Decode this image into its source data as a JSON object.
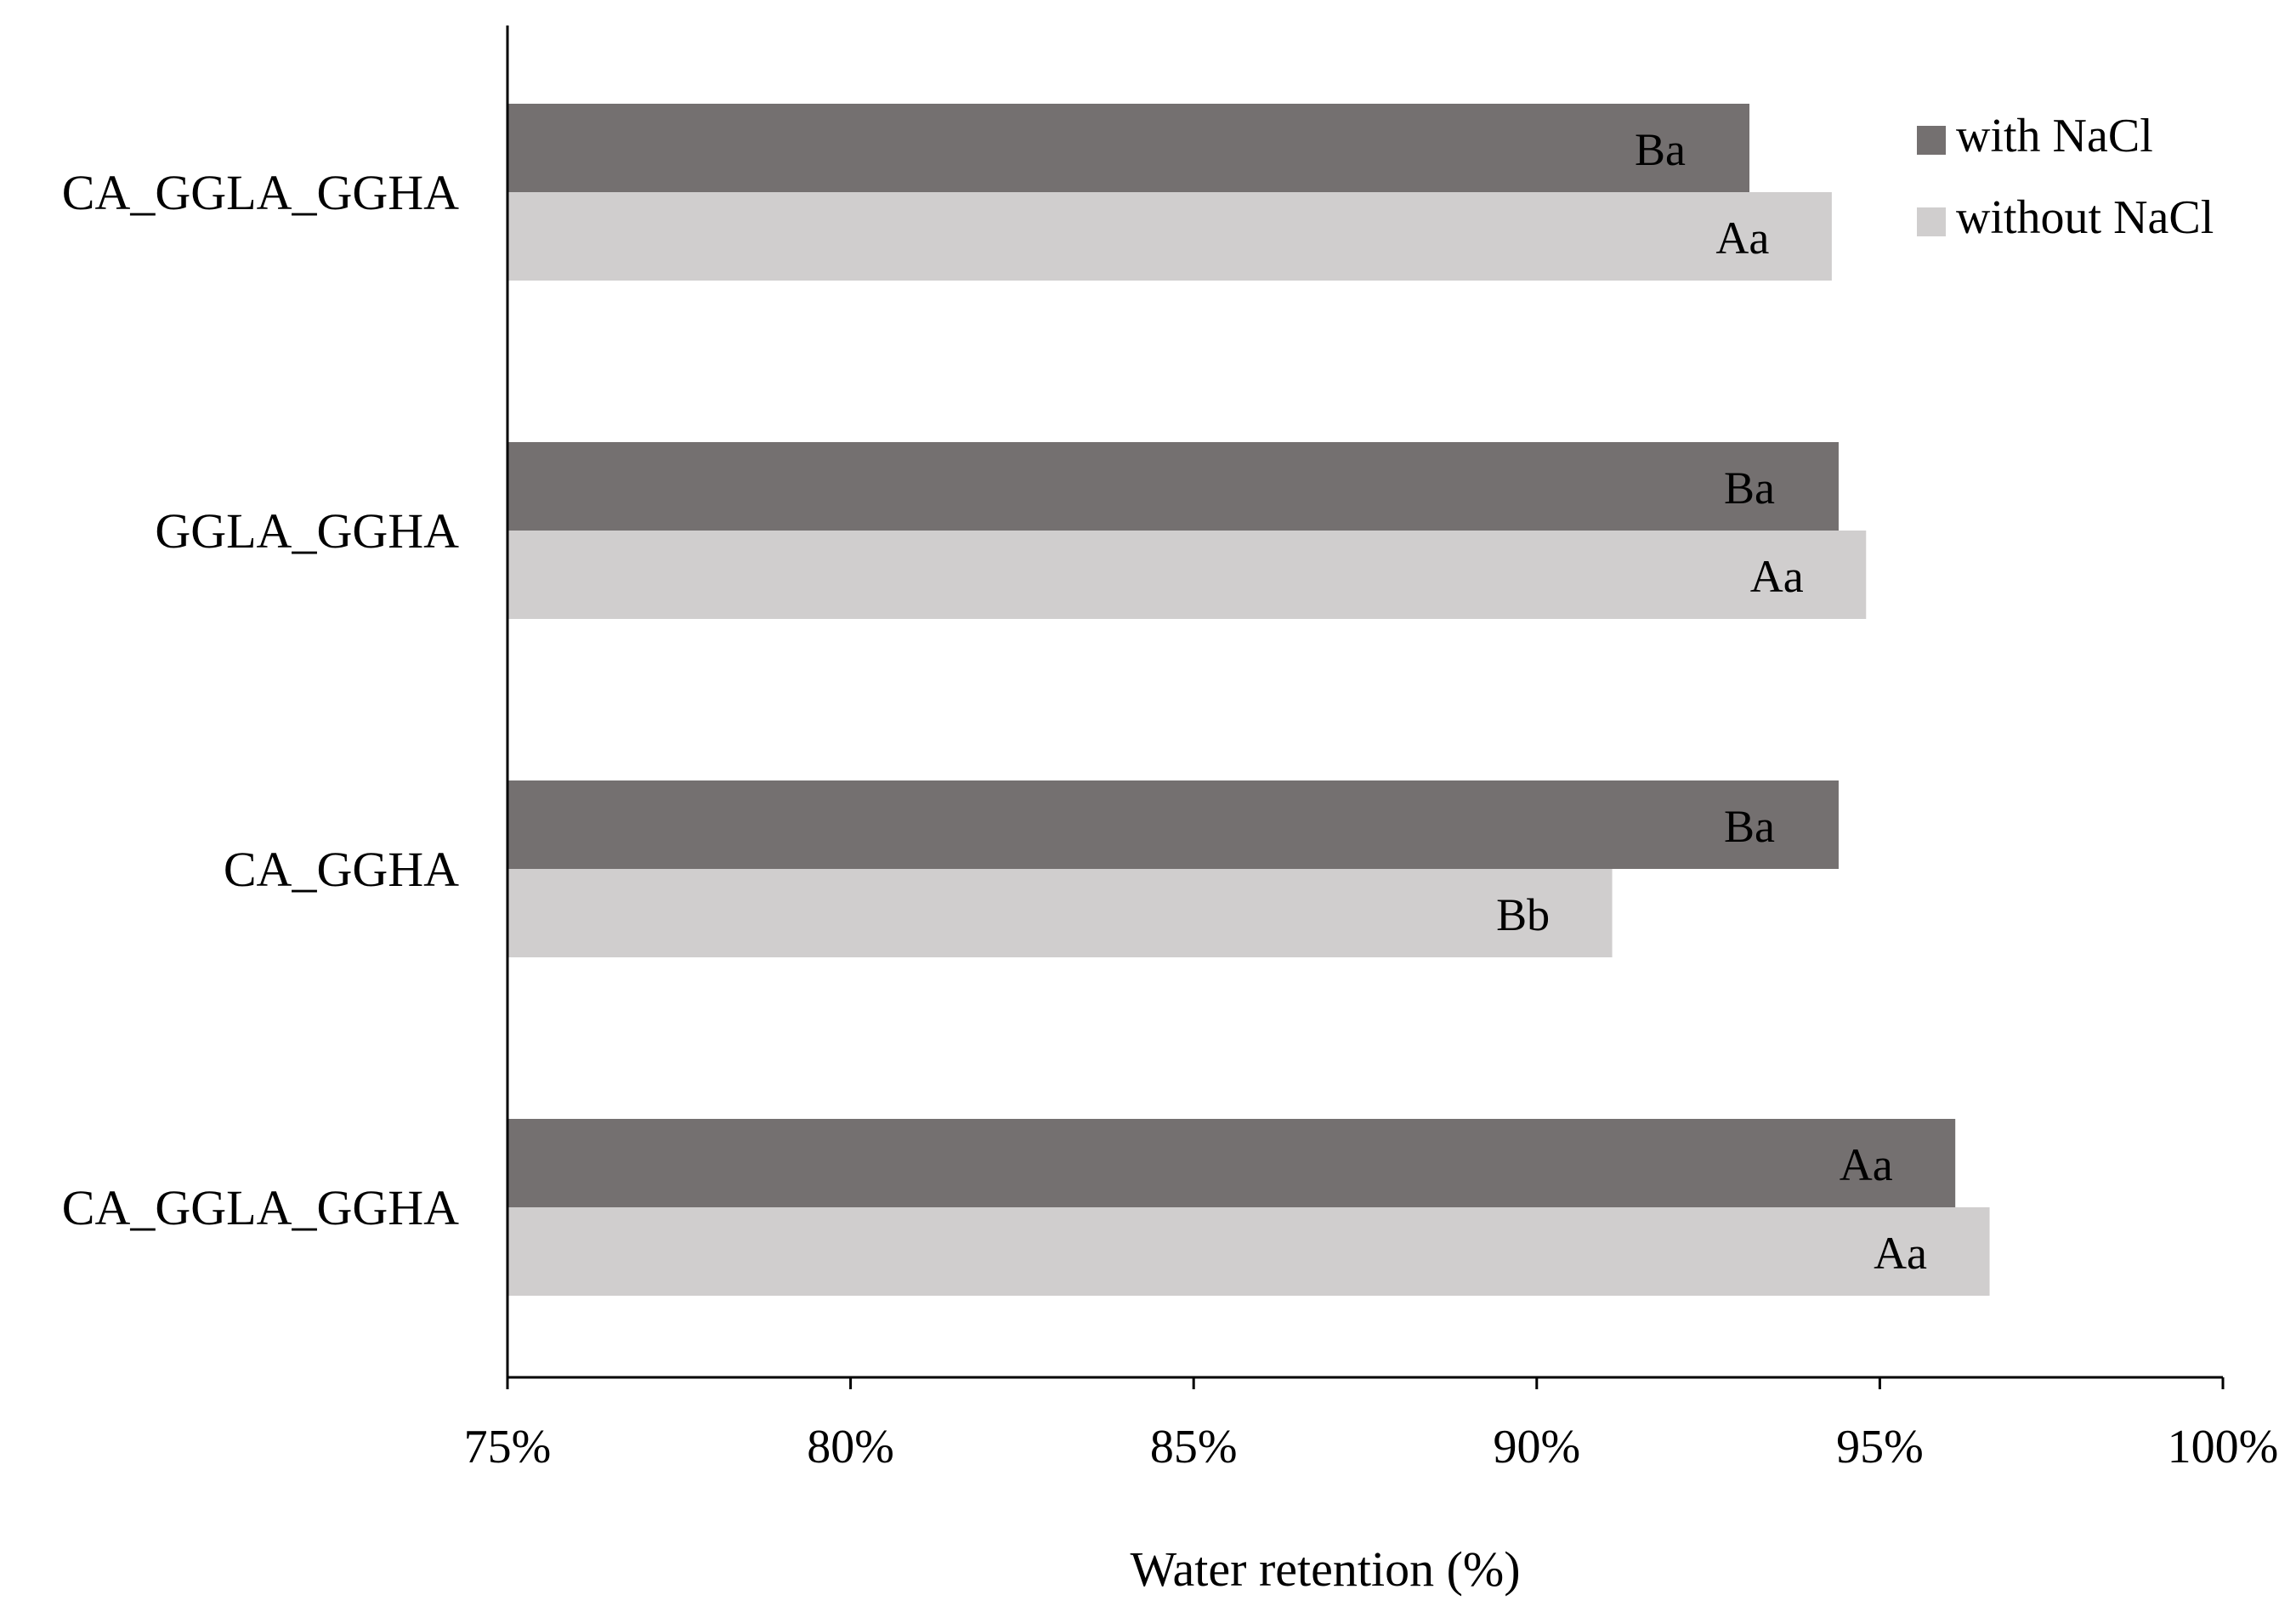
{
  "chart_data": {
    "type": "bar",
    "orientation": "horizontal",
    "categories": [
      "CA_GGLA_GGHA",
      "GGLA_GGHA",
      "CA_GGHA",
      "CA_GGLA_GGHA"
    ],
    "series": [
      {
        "name": "with NaCl",
        "color": "#747070",
        "values": [
          93.1,
          94.4,
          94.4,
          96.1
        ],
        "labels": [
          "Ba",
          "Ba",
          "Ba",
          "Aa"
        ]
      },
      {
        "name": "without NaCl",
        "color": "#d0cece",
        "values": [
          94.3,
          94.8,
          91.1,
          96.6
        ],
        "labels": [
          "Aa",
          "Aa",
          "Bb",
          "Aa"
        ]
      }
    ],
    "xlabel": "Water retention  (%)",
    "xlim": [
      75,
      100
    ],
    "xticks": [
      75,
      80,
      85,
      90,
      95,
      100
    ],
    "xtick_labels": [
      "75%",
      "80%",
      "85%",
      "90%",
      "95%",
      "100%"
    ],
    "legend_position": "top-right",
    "grid": false
  }
}
